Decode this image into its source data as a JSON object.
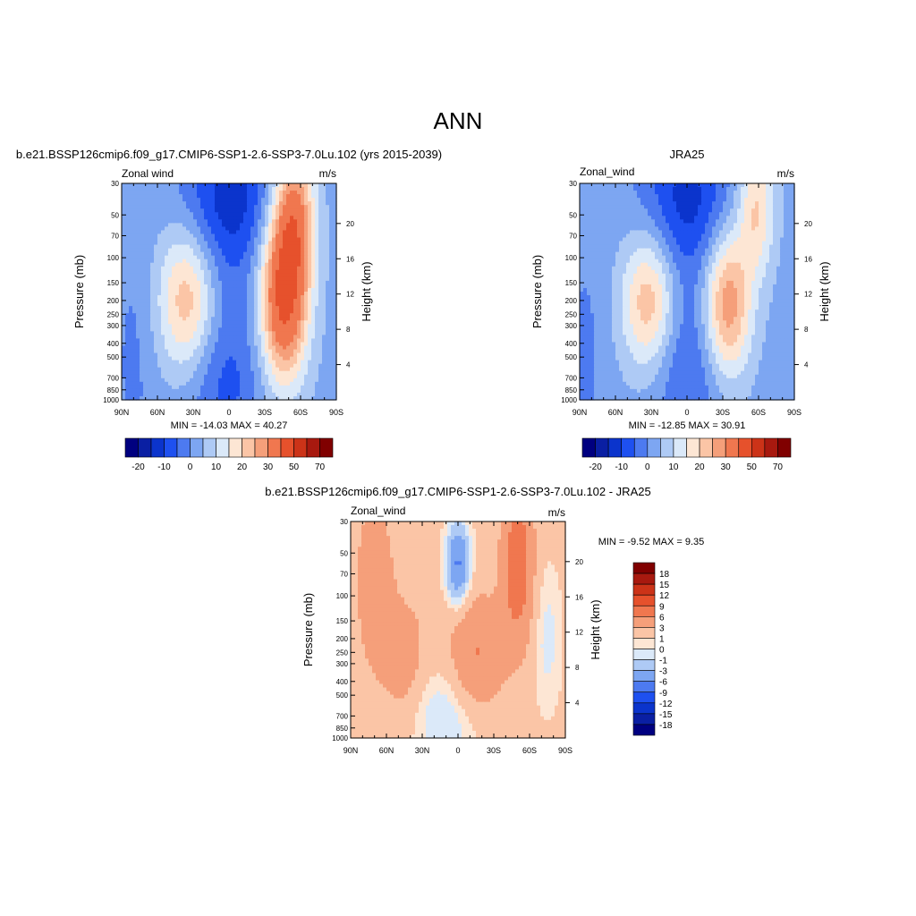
{
  "page": {
    "title": "ANN"
  },
  "chart_data": [
    {
      "type": "heatmap",
      "title": "b.e21.BSSP126cmip6.f09_g17.CMIP6-SSP1-2.6-SSP3-7.0Lu.102 (yrs 2015-2039)",
      "variable": "Zonal wind",
      "units": "m/s",
      "ylabel": "Pressure (mb)",
      "y2label": "Height (km)",
      "x_ticks": [
        "90N",
        "60N",
        "30N",
        "0",
        "30S",
        "60S",
        "90S"
      ],
      "y_ticks": [
        "30",
        "50",
        "70",
        "100",
        "150",
        "200",
        "250",
        "300",
        "400",
        "500",
        "700",
        "850",
        "1000"
      ],
      "y2_ticks": [
        "20",
        "16",
        "12",
        "8",
        "4"
      ],
      "min": -14.03,
      "max": 40.27,
      "stats_text": "MIN = -14.03  MAX =  40.27",
      "features": [
        {
          "lat": 35,
          "p": 200,
          "value": 25
        },
        {
          "lat": -45,
          "p": 200,
          "value": 40
        },
        {
          "lat": -50,
          "p": 60,
          "value": 40
        },
        {
          "lat": 0,
          "p": 40,
          "value": -14
        },
        {
          "lat": 0,
          "p": 700,
          "value": -8
        }
      ]
    },
    {
      "type": "heatmap",
      "title": "JRA25",
      "variable": "Zonal_wind",
      "units": "m/s",
      "ylabel": "Pressure (mb)",
      "y2label": "Height (km)",
      "x_ticks": [
        "90N",
        "60N",
        "30N",
        "0",
        "30S",
        "60S",
        "90S"
      ],
      "y_ticks": [
        "30",
        "50",
        "70",
        "100",
        "150",
        "200",
        "250",
        "300",
        "400",
        "500",
        "700",
        "850",
        "1000"
      ],
      "y2_ticks": [
        "20",
        "16",
        "12",
        "8",
        "4"
      ],
      "min": -12.85,
      "max": 30.91,
      "stats_text": "MIN = -12.85  MAX =  30.91",
      "features": [
        {
          "lat": 32,
          "p": 200,
          "value": 25
        },
        {
          "lat": -35,
          "p": 200,
          "value": 31
        },
        {
          "lat": -60,
          "p": 40,
          "value": 25
        },
        {
          "lat": 0,
          "p": 40,
          "value": -13
        },
        {
          "lat": 0,
          "p": 700,
          "value": -6
        }
      ]
    },
    {
      "type": "heatmap",
      "title": "b.e21.BSSP126cmip6.f09_g17.CMIP6-SSP1-2.6-SSP3-7.0Lu.102 - JRA25",
      "variable": "Zonal_wind",
      "units": "m/s",
      "ylabel": "Pressure (mb)",
      "y2label": "Height (km)",
      "x_ticks": [
        "90N",
        "60N",
        "30N",
        "0",
        "30S",
        "60S",
        "90S"
      ],
      "y_ticks": [
        "30",
        "50",
        "70",
        "100",
        "150",
        "200",
        "250",
        "300",
        "400",
        "500",
        "700",
        "850",
        "1000"
      ],
      "y2_ticks": [
        "20",
        "16",
        "12",
        "8",
        "4"
      ],
      "min": -9.52,
      "max": 9.35,
      "stats_text": "MIN =  -9.52  MAX =   9.35",
      "features": [
        {
          "lat": 0,
          "p": 60,
          "value": -6
        },
        {
          "lat": -50,
          "p": 60,
          "value": 9
        },
        {
          "lat": -15,
          "p": 250,
          "value": 5
        },
        {
          "lat": 70,
          "p": 80,
          "value": 4
        },
        {
          "lat": 45,
          "p": 300,
          "value": 3
        }
      ]
    }
  ],
  "colorbars": {
    "abs": {
      "colors": [
        "#000080",
        "#0a1fa3",
        "#0b34cc",
        "#1e50f0",
        "#4d7af0",
        "#7da6f2",
        "#aecaf5",
        "#dbe9f9",
        "#fde6d4",
        "#fbc5a6",
        "#f59f7a",
        "#f0774f",
        "#e6512c",
        "#cc3318",
        "#a8190f",
        "#800000"
      ],
      "tick_labels": [
        "-20",
        "-10",
        "0",
        "10",
        "20",
        "30",
        "50",
        "70"
      ]
    },
    "diff": {
      "colors": [
        "#000080",
        "#0a1fa3",
        "#0b34cc",
        "#1e50f0",
        "#4d7af0",
        "#7da6f2",
        "#aecaf5",
        "#dbe9f9",
        "#fde6d4",
        "#fbc5a6",
        "#f59f7a",
        "#f0774f",
        "#e6512c",
        "#cc3318",
        "#a8190f",
        "#800000"
      ],
      "tick_labels": [
        "18",
        "15",
        "12",
        "9",
        "6",
        "3",
        "1",
        "0",
        "-1",
        "-3",
        "-6",
        "-9",
        "-12",
        "-15",
        "-18"
      ]
    }
  }
}
